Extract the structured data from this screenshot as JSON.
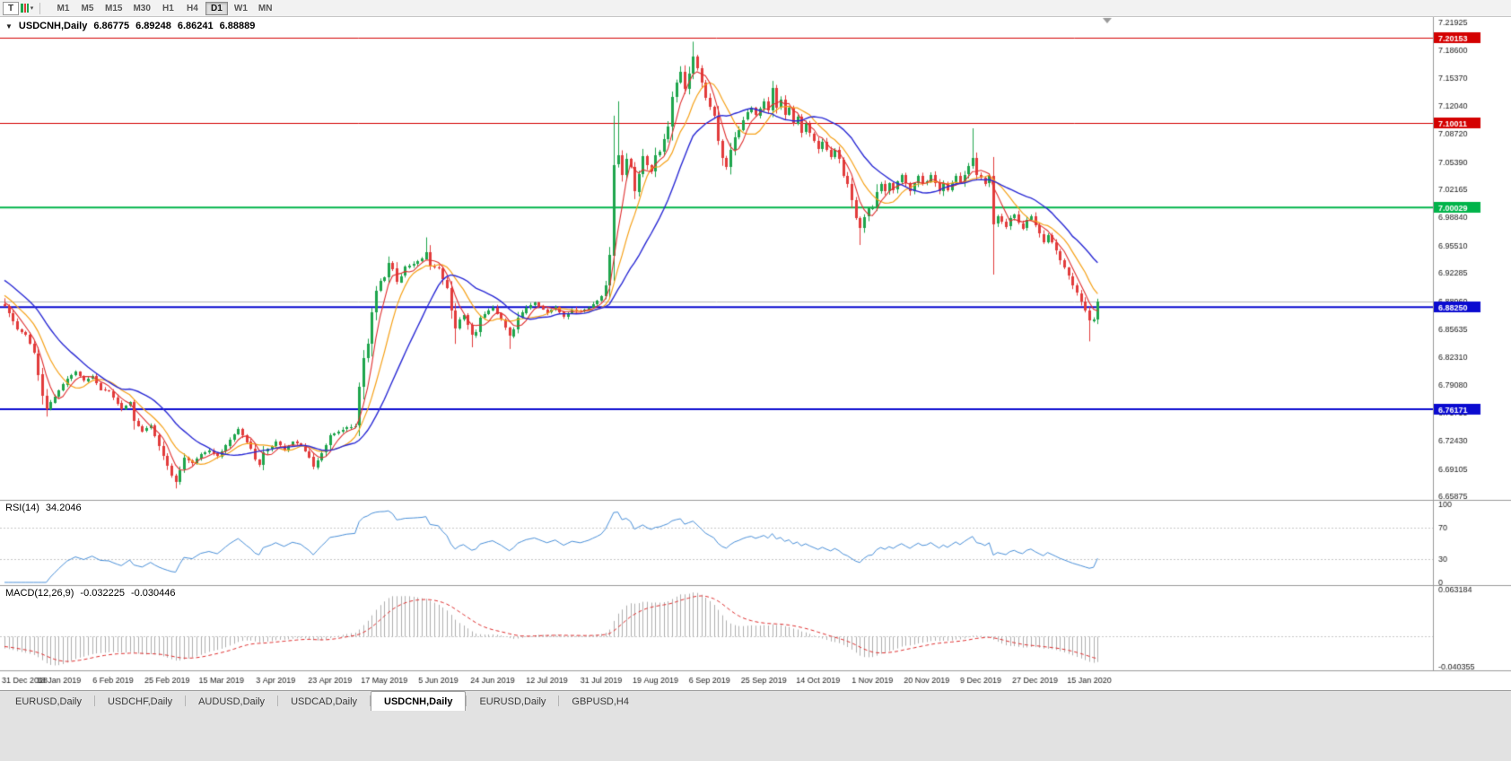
{
  "toolbar": {
    "cursor_button": "T",
    "dropdown_caret": "▾",
    "timeframes": [
      "M1",
      "M5",
      "M15",
      "M30",
      "H1",
      "H4",
      "D1",
      "W1",
      "MN"
    ],
    "active_timeframe": "D1"
  },
  "chart_header": {
    "collapse_icon": "▼",
    "symbol": "USDCNH,Daily",
    "open": "6.86775",
    "high": "6.89248",
    "low": "6.86241",
    "close": "6.88889"
  },
  "rsi_header": {
    "name": "RSI(14)",
    "value": "34.2046"
  },
  "macd_header": {
    "name": "MACD(12,26,9)",
    "value": "-0.032225",
    "signal": "-0.030446"
  },
  "bottom_tabs": {
    "labels": [
      "EURUSD,Daily",
      "USDCHF,Daily",
      "AUDUSD,Daily",
      "USDCAD,Daily",
      "USDCNH,Daily",
      "EURUSD,Daily",
      "GBPUSD,H4"
    ],
    "active_index": 4
  },
  "chart_data": {
    "type": "candlestick",
    "symbol": "USDCNH",
    "timeframe": "Daily",
    "ohlc_current": {
      "open": 6.86775,
      "high": 6.89248,
      "low": 6.86241,
      "close": 6.88889
    },
    "price_scale": {
      "max": 7.2214,
      "min": 6.6545
    },
    "price_axis_labels": [
      "7.21925",
      "7.18600",
      "7.15370",
      "7.12040",
      "7.08720",
      "7.05390",
      "7.02165",
      "6.98840",
      "6.95510",
      "6.92285",
      "6.88960",
      "6.85635",
      "6.82310",
      "6.79080",
      "6.75755",
      "6.72430",
      "6.69105",
      "6.65875"
    ],
    "h_lines": [
      {
        "value": 7.20153,
        "color": "#d40000",
        "width": 1,
        "label": "7.20153"
      },
      {
        "value": 7.10011,
        "color": "#d40000",
        "width": 1,
        "label": "7.10011"
      },
      {
        "value": 7.00029,
        "color": "#00b44a",
        "width": 2,
        "label": "7.00029"
      },
      {
        "value": 6.8825,
        "color": "#0b0bd0",
        "width": 2,
        "label": "6.88250"
      },
      {
        "value": 6.76171,
        "color": "#0b0bd0",
        "width": 2,
        "label": "6.76171"
      },
      {
        "value": 6.88889,
        "color": "#b4b4b4",
        "width": 1,
        "label": null
      }
    ],
    "date_labels": [
      "31 Dec 2018",
      "18 Jan 2019",
      "6 Feb 2019",
      "25 Feb 2019",
      "15 Mar 2019",
      "3 Apr 2019",
      "23 Apr 2019",
      "17 May 2019",
      "5 Jun 2019",
      "24 Jun 2019",
      "12 Jul 2019",
      "31 Jul 2019",
      "19 Aug 2019",
      "6 Sep 2019",
      "25 Sep 2019",
      "14 Oct 2019",
      "1 Nov 2019",
      "20 Nov 2019",
      "9 Dec 2019",
      "27 Dec 2019",
      "15 Jan 2020"
    ],
    "bars_per_label": 13,
    "colors": {
      "up": "#1ea54c",
      "down": "#e23b3b",
      "ma_fast": "#e03030",
      "ma_mid": "#f6a21a",
      "ma_slow": "#2b2bd5",
      "rsi": "#4a90d9",
      "macd_hist": "#b0b0b0",
      "macd_signal": "#e03030"
    },
    "ma_periods": {
      "fast": 5,
      "mid": 10,
      "slow": 20
    },
    "rsi": {
      "period": 14,
      "value": "34.2046",
      "levels": [
        100,
        70,
        30,
        0
      ]
    },
    "macd": {
      "fast": 12,
      "slow": 26,
      "signal": 9,
      "value": "-0.032225",
      "signal_value": "-0.030446",
      "axis_max": 0.063184,
      "axis_min": -0.040355,
      "axis_max_label": "0.063184",
      "axis_min_label": "-0.040355"
    },
    "candles": {
      "count": 263,
      "pre_closes": [
        6.952,
        6.948,
        6.945,
        6.94,
        6.938,
        6.934,
        6.93,
        6.928,
        6.924,
        6.92,
        6.916,
        6.912,
        6.908,
        6.905,
        6.9,
        6.896,
        6.893,
        6.89,
        6.888,
        6.886
      ],
      "close_anchors": [
        [
          0,
          6.884
        ],
        [
          1,
          6.875
        ],
        [
          3,
          6.856
        ],
        [
          5,
          6.85
        ],
        [
          7,
          6.828
        ],
        [
          9,
          6.778
        ],
        [
          10,
          6.762
        ],
        [
          11,
          6.77
        ],
        [
          13,
          6.784
        ],
        [
          15,
          6.798
        ],
        [
          17,
          6.806
        ],
        [
          19,
          6.795
        ],
        [
          21,
          6.801
        ],
        [
          23,
          6.785
        ],
        [
          25,
          6.783
        ],
        [
          26,
          6.776
        ],
        [
          28,
          6.762
        ],
        [
          30,
          6.77
        ],
        [
          31,
          6.748
        ],
        [
          33,
          6.736
        ],
        [
          35,
          6.743
        ],
        [
          37,
          6.718
        ],
        [
          39,
          6.695
        ],
        [
          40,
          6.683
        ],
        [
          41,
          6.676
        ],
        [
          42,
          6.69
        ],
        [
          43,
          6.704
        ],
        [
          45,
          6.698
        ],
        [
          47,
          6.709
        ],
        [
          49,
          6.713
        ],
        [
          51,
          6.706
        ],
        [
          52,
          6.712
        ],
        [
          54,
          6.726
        ],
        [
          56,
          6.738
        ],
        [
          57,
          6.731
        ],
        [
          59,
          6.715
        ],
        [
          60,
          6.702
        ],
        [
          61,
          6.696
        ],
        [
          62,
          6.711
        ],
        [
          64,
          6.718
        ],
        [
          65,
          6.723
        ],
        [
          67,
          6.714
        ],
        [
          69,
          6.723
        ],
        [
          71,
          6.719
        ],
        [
          73,
          6.705
        ],
        [
          74,
          6.693
        ],
        [
          75,
          6.701
        ],
        [
          77,
          6.719
        ],
        [
          78,
          6.731
        ],
        [
          80,
          6.735
        ],
        [
          82,
          6.74
        ],
        [
          84,
          6.742
        ],
        [
          85,
          6.788
        ],
        [
          86,
          6.822
        ],
        [
          87,
          6.839
        ],
        [
          88,
          6.876
        ],
        [
          89,
          6.902
        ],
        [
          90,
          6.914
        ],
        [
          91,
          6.918
        ],
        [
          92,
          6.935
        ],
        [
          93,
          6.928
        ],
        [
          94,
          6.912
        ],
        [
          95,
          6.919
        ],
        [
          96,
          6.93
        ],
        [
          98,
          6.934
        ],
        [
          100,
          6.94
        ],
        [
          101,
          6.948
        ],
        [
          102,
          6.931
        ],
        [
          104,
          6.928
        ],
        [
          105,
          6.915
        ],
        [
          106,
          6.905
        ],
        [
          107,
          6.878
        ],
        [
          108,
          6.857
        ],
        [
          109,
          6.868
        ],
        [
          110,
          6.873
        ],
        [
          112,
          6.849
        ],
        [
          113,
          6.853
        ],
        [
          114,
          6.87
        ],
        [
          116,
          6.879
        ],
        [
          117,
          6.882
        ],
        [
          119,
          6.868
        ],
        [
          121,
          6.848
        ],
        [
          122,
          6.856
        ],
        [
          123,
          6.87
        ],
        [
          125,
          6.882
        ],
        [
          127,
          6.888
        ],
        [
          129,
          6.88
        ],
        [
          130,
          6.876
        ],
        [
          132,
          6.883
        ],
        [
          134,
          6.871
        ],
        [
          136,
          6.88
        ],
        [
          138,
          6.877
        ],
        [
          140,
          6.882
        ],
        [
          142,
          6.89
        ],
        [
          143,
          6.895
        ],
        [
          144,
          6.908
        ],
        [
          145,
          6.944
        ],
        [
          146,
          7.051
        ],
        [
          147,
          7.062
        ],
        [
          148,
          7.039
        ],
        [
          149,
          7.058
        ],
        [
          150,
          7.048
        ],
        [
          151,
          7.019
        ],
        [
          152,
          7.04
        ],
        [
          153,
          7.061
        ],
        [
          154,
          7.05
        ],
        [
          155,
          7.043
        ],
        [
          156,
          7.062
        ],
        [
          157,
          7.066
        ],
        [
          158,
          7.081
        ],
        [
          159,
          7.096
        ],
        [
          160,
          7.131
        ],
        [
          161,
          7.148
        ],
        [
          162,
          7.161
        ],
        [
          163,
          7.141
        ],
        [
          164,
          7.159
        ],
        [
          165,
          7.179
        ],
        [
          166,
          7.165
        ],
        [
          167,
          7.148
        ],
        [
          168,
          7.13
        ],
        [
          169,
          7.119
        ],
        [
          170,
          7.108
        ],
        [
          171,
          7.079
        ],
        [
          172,
          7.059
        ],
        [
          173,
          7.048
        ],
        [
          174,
          7.068
        ],
        [
          175,
          7.083
        ],
        [
          176,
          7.092
        ],
        [
          177,
          7.104
        ],
        [
          178,
          7.113
        ],
        [
          179,
          7.118
        ],
        [
          180,
          7.109
        ],
        [
          181,
          7.117
        ],
        [
          182,
          7.126
        ],
        [
          183,
          7.115
        ],
        [
          184,
          7.142
        ],
        [
          185,
          7.119
        ],
        [
          186,
          7.128
        ],
        [
          187,
          7.11
        ],
        [
          188,
          7.118
        ],
        [
          189,
          7.099
        ],
        [
          190,
          7.108
        ],
        [
          191,
          7.089
        ],
        [
          192,
          7.099
        ],
        [
          193,
          7.088
        ],
        [
          194,
          7.079
        ],
        [
          195,
          7.069
        ],
        [
          196,
          7.078
        ],
        [
          197,
          7.068
        ],
        [
          198,
          7.059
        ],
        [
          199,
          7.068
        ],
        [
          200,
          7.057
        ],
        [
          201,
          7.038
        ],
        [
          202,
          7.028
        ],
        [
          203,
          7.009
        ],
        [
          204,
          6.988
        ],
        [
          205,
          6.976
        ],
        [
          206,
          6.989
        ],
        [
          207,
          6.999
        ],
        [
          208,
          7.001
        ],
        [
          209,
          7.019
        ],
        [
          210,
          7.028
        ],
        [
          211,
          7.019
        ],
        [
          212,
          7.029
        ],
        [
          213,
          7.021
        ],
        [
          214,
          7.031
        ],
        [
          215,
          7.039
        ],
        [
          216,
          7.029
        ],
        [
          217,
          7.019
        ],
        [
          218,
          7.029
        ],
        [
          219,
          7.038
        ],
        [
          220,
          7.029
        ],
        [
          221,
          7.031
        ],
        [
          222,
          7.039
        ],
        [
          223,
          7.029
        ],
        [
          224,
          7.019
        ],
        [
          225,
          7.029
        ],
        [
          226,
          7.02
        ],
        [
          227,
          7.029
        ],
        [
          228,
          7.038
        ],
        [
          229,
          7.029
        ],
        [
          230,
          7.039
        ],
        [
          231,
          7.049
        ],
        [
          232,
          7.059
        ],
        [
          233,
          7.039
        ],
        [
          234,
          7.036
        ],
        [
          235,
          7.029
        ],
        [
          236,
          7.038
        ],
        [
          237,
          6.981
        ],
        [
          238,
          6.99
        ],
        [
          239,
          6.984
        ],
        [
          240,
          6.978
        ],
        [
          241,
          6.988
        ],
        [
          242,
          6.992
        ],
        [
          243,
          6.982
        ],
        [
          244,
          6.976
        ],
        [
          245,
          6.986
        ],
        [
          246,
          6.99
        ],
        [
          247,
          6.979
        ],
        [
          248,
          6.969
        ],
        [
          249,
          6.959
        ],
        [
          250,
          6.968
        ],
        [
          251,
          6.959
        ],
        [
          252,
          6.949
        ],
        [
          253,
          6.938
        ],
        [
          254,
          6.929
        ],
        [
          255,
          6.919
        ],
        [
          256,
          6.908
        ],
        [
          257,
          6.899
        ],
        [
          258,
          6.889
        ],
        [
          259,
          6.878
        ],
        [
          260,
          6.866
        ],
        [
          261,
          6.868
        ],
        [
          262,
          6.8889
        ]
      ],
      "wick_overrides": [
        [
          0,
          "high",
          6.893
        ],
        [
          10,
          "low",
          6.753
        ],
        [
          41,
          "low",
          6.668
        ],
        [
          101,
          "high",
          6.965
        ],
        [
          108,
          "low",
          6.839
        ],
        [
          112,
          "low",
          6.835
        ],
        [
          121,
          "low",
          6.833
        ],
        [
          146,
          "high",
          7.109
        ],
        [
          147,
          "high",
          7.126
        ],
        [
          165,
          "high",
          7.1965
        ],
        [
          205,
          "low",
          6.956
        ],
        [
          232,
          "high",
          7.094
        ],
        [
          237,
          "low",
          6.921
        ],
        [
          260,
          "low",
          6.842
        ]
      ],
      "last_candle": {
        "open": 6.86775,
        "high": 6.89248,
        "low": 6.86241,
        "close": 6.88889
      }
    }
  }
}
